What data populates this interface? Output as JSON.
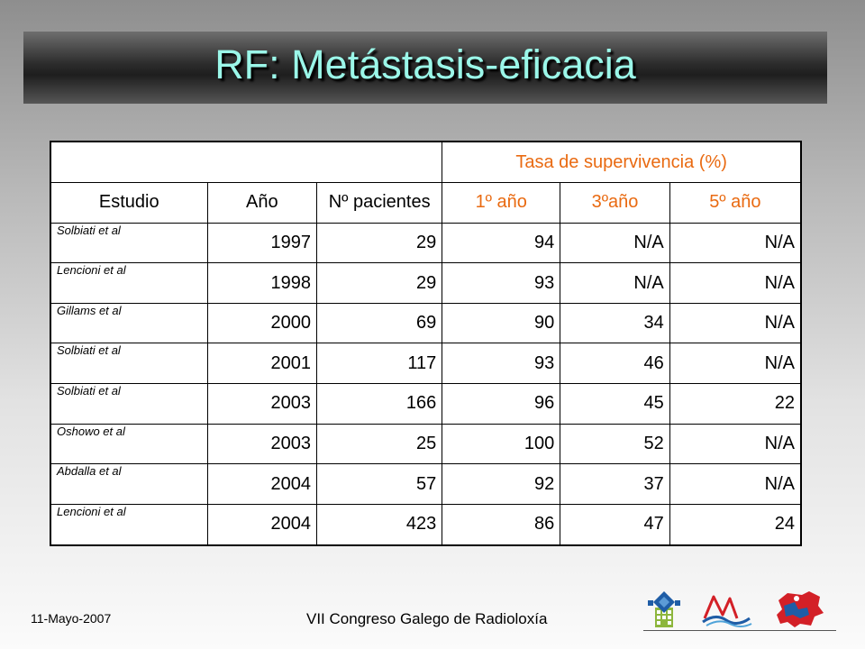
{
  "slide": {
    "title": "RF: Metástasis-eficacia",
    "footer": {
      "date": "11-Mayo-2007",
      "event": "VII Congreso Galego de Radioloxía"
    },
    "colors": {
      "title": "#9bf7e9",
      "accent": "#e96a11"
    }
  },
  "table": {
    "group_header": "Tasa de supervivencia (%)",
    "columns": [
      "Estudio",
      "Año",
      "Nº pacientes",
      "1º año",
      "3ºaño",
      "5º año"
    ],
    "rows": [
      [
        "Solbiati et al",
        "1997",
        "29",
        "94",
        "N/A",
        "N/A"
      ],
      [
        "Lencioni et al",
        "1998",
        "29",
        "93",
        "N/A",
        "N/A"
      ],
      [
        "Gillams et al",
        "2000",
        "69",
        "90",
        "34",
        "N/A"
      ],
      [
        "Solbiati et al",
        "2001",
        "117",
        "93",
        "46",
        "N/A"
      ],
      [
        "Solbiati et al",
        "2003",
        "166",
        "96",
        "45",
        "22"
      ],
      [
        "Oshowo et al",
        "2003",
        "25",
        "100",
        "52",
        "N/A"
      ],
      [
        "Abdalla et al",
        "2004",
        "57",
        "92",
        "37",
        "N/A"
      ],
      [
        "Lencioni et al",
        "2004",
        "423",
        "86",
        "47",
        "24"
      ]
    ]
  },
  "logos": [
    "tower-logo",
    "ribbon-logo",
    "galicia-map-logo"
  ]
}
